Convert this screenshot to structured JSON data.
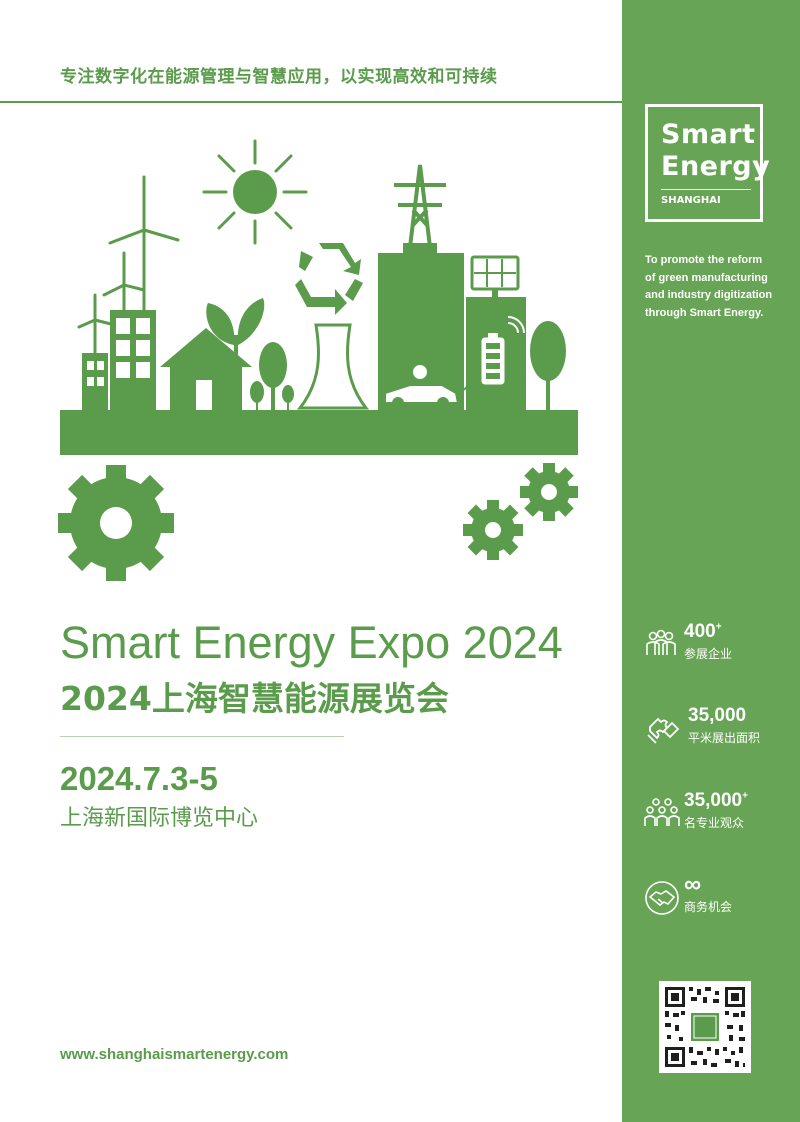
{
  "header": {
    "tagline": "专注数字化在能源管理与智慧应用，以实现高效和可持续"
  },
  "logo": {
    "line1": "Smart",
    "line2": "Energy",
    "line3": "SHANGHAI"
  },
  "promo": {
    "lines": [
      "To promote the reform",
      "of green manufacturing",
      "and industry digitization",
      "through Smart Energy."
    ]
  },
  "stats": [
    {
      "icon": "people-group-icon",
      "value": "400",
      "suffix": "+",
      "label": "参展企业"
    },
    {
      "icon": "puzzle-icon",
      "value": "35,000",
      "suffix": "",
      "label": "平米展出面积"
    },
    {
      "icon": "audience-icon",
      "value": "35,000",
      "suffix": "+",
      "label": "名专业观众"
    },
    {
      "icon": "handshake-icon",
      "value": "∞",
      "suffix": "",
      "label": "商务机会"
    }
  ],
  "main": {
    "title_en": "Smart Energy Expo 2024",
    "title_cn": "2024上海智慧能源展览会",
    "date": "2024.7.3-5",
    "venue": "上海新国际博览中心",
    "website": "www.shanghaismartenergy.com"
  },
  "colors": {
    "brand_green": "#5a9b4c",
    "sidebar_green": "#67a455",
    "white": "#ffffff"
  }
}
